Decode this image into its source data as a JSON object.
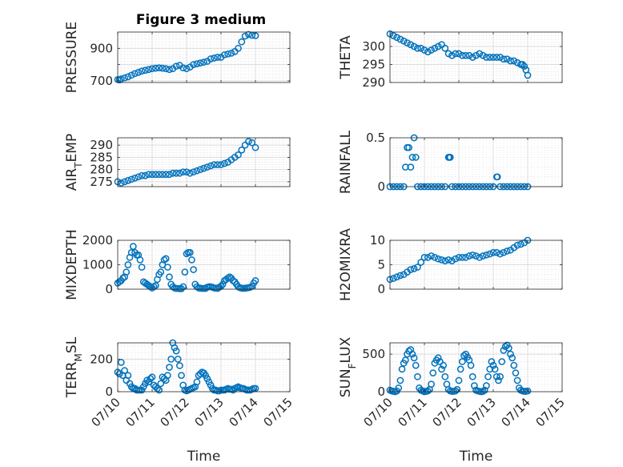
{
  "figure": {
    "title": "Figure 3 medium",
    "colors": {
      "marker": "#0072BD",
      "axis": "#262626",
      "grid": "#dcdcdc"
    }
  },
  "chart_data": [
    {
      "type": "scatter",
      "marker": "circle",
      "title": "Figure 3 medium",
      "ylabel": "PRESSURE",
      "xlabel": "",
      "xlim": [
        "07/10",
        "07/15"
      ],
      "ylim": [
        690,
        1000
      ],
      "xticks": [
        "07/10",
        "07/11",
        "07/12",
        "07/13",
        "07/14",
        "07/15"
      ],
      "yticks": [
        700,
        800,
        900
      ],
      "ytick_labels": [
        "700",
        "",
        "900"
      ],
      "grid": true,
      "x": [
        0,
        0.05,
        0.1,
        0.2,
        0.3,
        0.4,
        0.5,
        0.6,
        0.7,
        0.8,
        0.9,
        1.0,
        1.1,
        1.2,
        1.3,
        1.4,
        1.5,
        1.6,
        1.7,
        1.8,
        1.9,
        2.0,
        2.1,
        2.2,
        2.3,
        2.4,
        2.5,
        2.6,
        2.7,
        2.8,
        2.9,
        3.0,
        3.1,
        3.2,
        3.3,
        3.4,
        3.5,
        3.6,
        3.7,
        3.8,
        3.9,
        4.0
      ],
      "y": [
        708,
        706,
        712,
        718,
        725,
        735,
        745,
        752,
        760,
        765,
        770,
        775,
        778,
        780,
        778,
        775,
        770,
        775,
        790,
        795,
        780,
        775,
        785,
        800,
        805,
        810,
        815,
        820,
        835,
        840,
        845,
        845,
        860,
        865,
        870,
        880,
        900,
        940,
        975,
        985,
        980,
        978
      ]
    },
    {
      "type": "scatter",
      "marker": "circle",
      "ylabel": "THETA",
      "xlabel": "",
      "xlim": [
        "07/10",
        "07/15"
      ],
      "ylim": [
        290,
        304
      ],
      "xticks": [
        "07/10",
        "07/11",
        "07/12",
        "07/13",
        "07/14",
        "07/15"
      ],
      "yticks": [
        290,
        295,
        300
      ],
      "grid": true,
      "x": [
        0,
        0.1,
        0.2,
        0.3,
        0.4,
        0.5,
        0.6,
        0.7,
        0.8,
        0.9,
        1.0,
        1.1,
        1.2,
        1.3,
        1.4,
        1.5,
        1.6,
        1.7,
        1.8,
        1.9,
        2.0,
        2.1,
        2.2,
        2.3,
        2.4,
        2.5,
        2.6,
        2.7,
        2.8,
        2.9,
        3.0,
        3.1,
        3.2,
        3.3,
        3.4,
        3.5,
        3.6,
        3.7,
        3.8,
        3.85,
        3.9,
        3.95,
        4.0
      ],
      "y": [
        303.5,
        303,
        302.5,
        302,
        301.5,
        301,
        300.5,
        300,
        299.5,
        299.5,
        299,
        298.5,
        299,
        299.5,
        300,
        300.5,
        299.5,
        298,
        297.5,
        298,
        298,
        297.5,
        297.5,
        297.5,
        297,
        297.5,
        298,
        297.5,
        297,
        297,
        297,
        297,
        297,
        296.5,
        296.5,
        296,
        296,
        295.5,
        295,
        295,
        294.5,
        293.5,
        292
      ]
    },
    {
      "type": "scatter",
      "marker": "circle",
      "ylabel": "AIR_TEMP",
      "xlabel": "",
      "xlim": [
        "07/10",
        "07/15"
      ],
      "ylim": [
        273,
        293
      ],
      "xticks": [
        "07/10",
        "07/11",
        "07/12",
        "07/13",
        "07/14",
        "07/15"
      ],
      "yticks": [
        275,
        280,
        285,
        290
      ],
      "grid": true,
      "x": [
        0,
        0.1,
        0.2,
        0.3,
        0.4,
        0.5,
        0.6,
        0.7,
        0.8,
        0.9,
        1.0,
        1.1,
        1.2,
        1.3,
        1.4,
        1.5,
        1.6,
        1.7,
        1.8,
        1.9,
        2.0,
        2.1,
        2.2,
        2.3,
        2.4,
        2.5,
        2.6,
        2.7,
        2.8,
        2.9,
        3.0,
        3.1,
        3.2,
        3.3,
        3.4,
        3.5,
        3.6,
        3.7,
        3.8,
        3.9,
        4.0
      ],
      "y": [
        275,
        274.5,
        275,
        275.5,
        276,
        276.5,
        277,
        277.5,
        277.5,
        278,
        278,
        278,
        278,
        278,
        278,
        278,
        278.5,
        278.5,
        278.5,
        279,
        279,
        278.5,
        279,
        279.5,
        280,
        280.5,
        281,
        281.5,
        282,
        282,
        282,
        282.5,
        283,
        284,
        285,
        286,
        288,
        290,
        291.5,
        291,
        289
      ]
    },
    {
      "type": "scatter",
      "marker": "circle",
      "ylabel": "RAINFALL",
      "xlabel": "",
      "xlim": [
        "07/10",
        "07/15"
      ],
      "ylim": [
        0,
        0.5
      ],
      "xticks": [
        "07/10",
        "07/11",
        "07/12",
        "07/13",
        "07/14",
        "07/15"
      ],
      "yticks": [
        0,
        0.5
      ],
      "grid": true,
      "x": [
        0,
        0.1,
        0.2,
        0.3,
        0.4,
        0.45,
        0.5,
        0.55,
        0.6,
        0.65,
        0.7,
        0.75,
        0.8,
        0.9,
        1.0,
        1.1,
        1.2,
        1.3,
        1.4,
        1.5,
        1.6,
        1.7,
        1.72,
        1.75,
        1.8,
        1.9,
        2.0,
        2.1,
        2.2,
        2.3,
        2.4,
        2.5,
        2.6,
        2.7,
        2.8,
        2.9,
        3.0,
        3.1,
        3.12,
        3.2,
        3.3,
        3.4,
        3.5,
        3.6,
        3.7,
        3.8,
        3.9,
        4.0
      ],
      "y": [
        0,
        0,
        0,
        0,
        0,
        0.2,
        0.4,
        0.4,
        0.2,
        0.3,
        0.5,
        0.3,
        0,
        0,
        0,
        0,
        0,
        0,
        0,
        0,
        0,
        0.3,
        0.3,
        0.3,
        0,
        0,
        0,
        0,
        0,
        0,
        0,
        0,
        0,
        0,
        0,
        0,
        0,
        0.1,
        0.1,
        0,
        0,
        0,
        0,
        0,
        0,
        0,
        0,
        0
      ]
    },
    {
      "type": "scatter",
      "marker": "circle",
      "ylabel": "MIXDEPTH",
      "xlabel": "",
      "xlim": [
        "07/10",
        "07/15"
      ],
      "ylim": [
        0,
        2000
      ],
      "xticks": [
        "07/10",
        "07/11",
        "07/12",
        "07/13",
        "07/14",
        "07/15"
      ],
      "yticks": [
        0,
        1000,
        2000
      ],
      "grid": true,
      "x": [
        0,
        0.05,
        0.1,
        0.15,
        0.2,
        0.25,
        0.3,
        0.35,
        0.4,
        0.45,
        0.5,
        0.55,
        0.6,
        0.65,
        0.7,
        0.75,
        0.8,
        0.85,
        0.9,
        0.95,
        1.0,
        1.05,
        1.1,
        1.15,
        1.2,
        1.25,
        1.3,
        1.35,
        1.4,
        1.45,
        1.5,
        1.55,
        1.6,
        1.65,
        1.7,
        1.75,
        1.8,
        1.85,
        1.9,
        1.95,
        2.0,
        2.05,
        2.1,
        2.15,
        2.2,
        2.25,
        2.3,
        2.35,
        2.4,
        2.45,
        2.5,
        2.55,
        2.6,
        2.65,
        2.7,
        2.75,
        2.8,
        2.85,
        2.9,
        2.95,
        3.0,
        3.05,
        3.1,
        3.15,
        3.2,
        3.25,
        3.3,
        3.35,
        3.4,
        3.45,
        3.5,
        3.55,
        3.6,
        3.65,
        3.7,
        3.75,
        3.8,
        3.85,
        3.9,
        3.95,
        4.0
      ],
      "y": [
        250,
        300,
        350,
        450,
        500,
        700,
        1000,
        1300,
        1500,
        1750,
        1500,
        1400,
        1400,
        1200,
        900,
        300,
        250,
        200,
        150,
        100,
        50,
        100,
        150,
        400,
        600,
        700,
        1000,
        1200,
        1250,
        900,
        500,
        200,
        100,
        50,
        30,
        30,
        20,
        20,
        100,
        700,
        1450,
        1500,
        1500,
        1200,
        800,
        200,
        100,
        50,
        40,
        30,
        30,
        30,
        80,
        100,
        100,
        80,
        50,
        40,
        30,
        80,
        120,
        200,
        350,
        400,
        450,
        500,
        450,
        350,
        300,
        200,
        100,
        60,
        40,
        30,
        40,
        50,
        60,
        80,
        120,
        250,
        350
      ]
    },
    {
      "type": "scatter",
      "marker": "circle",
      "ylabel": "H2OMIXRA",
      "xlabel": "",
      "xlim": [
        "07/10",
        "07/15"
      ],
      "ylim": [
        0,
        10
      ],
      "xticks": [
        "07/10",
        "07/11",
        "07/12",
        "07/13",
        "07/14",
        "07/15"
      ],
      "yticks": [
        0,
        5,
        10
      ],
      "grid": true,
      "x": [
        0,
        0.1,
        0.2,
        0.3,
        0.4,
        0.5,
        0.6,
        0.7,
        0.8,
        0.9,
        1.0,
        1.1,
        1.2,
        1.3,
        1.4,
        1.5,
        1.6,
        1.7,
        1.8,
        1.9,
        2.0,
        2.1,
        2.2,
        2.3,
        2.4,
        2.5,
        2.6,
        2.7,
        2.8,
        2.9,
        3.0,
        3.1,
        3.2,
        3.3,
        3.4,
        3.5,
        3.6,
        3.7,
        3.8,
        3.9,
        4.0
      ],
      "y": [
        2,
        2.2,
        2.5,
        2.8,
        3,
        3.5,
        4,
        4.2,
        4.5,
        5.5,
        6.5,
        6.5,
        6.8,
        6.5,
        6.2,
        6,
        5.8,
        6,
        5.8,
        6.2,
        6.5,
        6.5,
        6.5,
        6.8,
        7,
        6.8,
        6.5,
        6.8,
        7,
        7.2,
        7.5,
        7.5,
        7.2,
        7.5,
        7.8,
        8,
        8.5,
        9,
        9.2,
        9.5,
        10
      ]
    },
    {
      "type": "scatter",
      "marker": "circle",
      "ylabel": "TERR_MSL",
      "xlabel": "Time",
      "xlim": [
        "07/10",
        "07/15"
      ],
      "ylim": [
        0,
        300
      ],
      "xticks": [
        "07/10",
        "07/11",
        "07/12",
        "07/13",
        "07/14",
        "07/15"
      ],
      "yticks": [
        0,
        200
      ],
      "grid": true,
      "x": [
        0,
        0.05,
        0.1,
        0.15,
        0.2,
        0.25,
        0.3,
        0.35,
        0.4,
        0.45,
        0.5,
        0.55,
        0.6,
        0.65,
        0.7,
        0.75,
        0.8,
        0.85,
        0.9,
        0.95,
        1.0,
        1.05,
        1.1,
        1.15,
        1.2,
        1.25,
        1.3,
        1.35,
        1.4,
        1.45,
        1.5,
        1.55,
        1.6,
        1.65,
        1.7,
        1.75,
        1.8,
        1.85,
        1.9,
        1.95,
        2.0,
        2.05,
        2.1,
        2.15,
        2.2,
        2.25,
        2.3,
        2.35,
        2.4,
        2.45,
        2.5,
        2.55,
        2.6,
        2.65,
        2.7,
        2.75,
        2.8,
        2.85,
        2.9,
        2.95,
        3.0,
        3.05,
        3.1,
        3.15,
        3.2,
        3.25,
        3.3,
        3.35,
        3.4,
        3.45,
        3.5,
        3.55,
        3.6,
        3.65,
        3.7,
        3.75,
        3.8,
        3.85,
        3.9,
        3.95,
        4.0
      ],
      "y": [
        120,
        110,
        180,
        100,
        130,
        70,
        100,
        50,
        30,
        20,
        20,
        10,
        10,
        10,
        10,
        30,
        50,
        70,
        60,
        80,
        90,
        40,
        30,
        20,
        10,
        50,
        90,
        80,
        70,
        100,
        150,
        200,
        300,
        270,
        250,
        200,
        160,
        100,
        40,
        10,
        5,
        10,
        15,
        20,
        25,
        30,
        60,
        100,
        110,
        120,
        115,
        100,
        80,
        60,
        40,
        20,
        10,
        10,
        5,
        5,
        10,
        10,
        10,
        15,
        20,
        15,
        15,
        10,
        20,
        25,
        30,
        25,
        20,
        20,
        15,
        10,
        10,
        10,
        15,
        20,
        20
      ]
    },
    {
      "type": "scatter",
      "marker": "circle",
      "ylabel": "SUN_FLUX",
      "xlabel": "Time",
      "xlim": [
        "07/10",
        "07/15"
      ],
      "ylim": [
        0,
        650
      ],
      "xticks": [
        "07/10",
        "07/11",
        "07/12",
        "07/13",
        "07/14",
        "07/15"
      ],
      "yticks": [
        0,
        500
      ],
      "grid": true,
      "x": [
        0,
        0.05,
        0.1,
        0.15,
        0.2,
        0.25,
        0.3,
        0.35,
        0.4,
        0.45,
        0.5,
        0.55,
        0.6,
        0.65,
        0.7,
        0.75,
        0.8,
        0.85,
        0.9,
        0.95,
        1.0,
        1.05,
        1.1,
        1.15,
        1.2,
        1.25,
        1.3,
        1.35,
        1.4,
        1.45,
        1.5,
        1.55,
        1.6,
        1.65,
        1.7,
        1.75,
        1.8,
        1.85,
        1.9,
        1.95,
        2.0,
        2.05,
        2.1,
        2.15,
        2.2,
        2.25,
        2.3,
        2.35,
        2.4,
        2.45,
        2.5,
        2.55,
        2.6,
        2.65,
        2.7,
        2.75,
        2.8,
        2.85,
        2.9,
        2.95,
        3.0,
        3.05,
        3.1,
        3.15,
        3.2,
        3.25,
        3.3,
        3.35,
        3.4,
        3.45,
        3.5,
        3.55,
        3.6,
        3.65,
        3.7,
        3.75,
        3.8,
        3.85,
        3.9,
        3.95,
        4.0
      ],
      "y": [
        20,
        10,
        5,
        0,
        10,
        50,
        150,
        300,
        380,
        420,
        500,
        540,
        560,
        500,
        450,
        350,
        200,
        50,
        20,
        10,
        0,
        5,
        10,
        30,
        100,
        250,
        380,
        420,
        450,
        400,
        300,
        350,
        200,
        100,
        30,
        10,
        5,
        5,
        10,
        30,
        150,
        300,
        400,
        480,
        500,
        460,
        420,
        350,
        200,
        80,
        20,
        10,
        5,
        0,
        5,
        20,
        80,
        200,
        300,
        400,
        350,
        300,
        200,
        150,
        200,
        400,
        550,
        600,
        620,
        580,
        500,
        450,
        350,
        250,
        150,
        50,
        20,
        10,
        5,
        5,
        10
      ]
    }
  ]
}
